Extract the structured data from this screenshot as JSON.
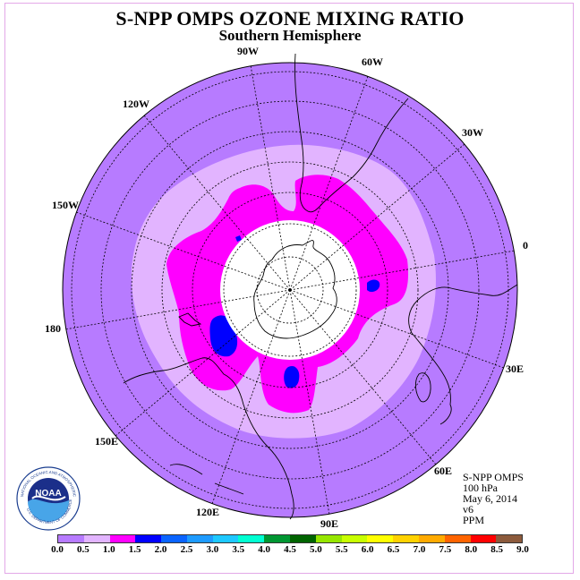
{
  "title": "S-NPP OMPS OZONE MIXING RATIO",
  "subtitle": "Southern Hemisphere",
  "longitude_labels": [
    "90W",
    "60W",
    "30W",
    "0",
    "30E",
    "60E",
    "90E",
    "120E",
    "150E",
    "180",
    "150W",
    "120W"
  ],
  "info": {
    "instrument": "S-NPP OMPS",
    "pressure_level": "100 hPa",
    "date": "May 6, 2014",
    "version": "v6",
    "units": "PPM"
  },
  "logo": {
    "text": "NOAA",
    "ring_text": "NATIONAL OCEANIC AND ATMOSPHERIC ADMINISTRATION",
    "ring_text_bottom": "U.S. DEPARTMENT OF COMMERCE"
  },
  "colorbar": {
    "ticks": [
      "0.0",
      "0.5",
      "1.0",
      "1.5",
      "2.0",
      "2.5",
      "3.0",
      "3.5",
      "4.0",
      "4.5",
      "5.0",
      "5.5",
      "6.0",
      "6.5",
      "7.0",
      "7.5",
      "8.0",
      "8.5",
      "9.0"
    ],
    "colors": [
      "#b77bff",
      "#e2b4ff",
      "#ff00ff",
      "#0000ff",
      "#0a64ff",
      "#1e9bff",
      "#1ec8ff",
      "#00ffd2",
      "#009632",
      "#006400",
      "#96e600",
      "#c8ff00",
      "#ffff00",
      "#ffd200",
      "#ffaa00",
      "#ff6400",
      "#ff0000",
      "#8c5a3c"
    ]
  },
  "map_colors": {
    "band_0_0_5": "#b77bff",
    "band_0_5_1_0": "#e2b4ff",
    "band_1_0_1_5": "#ff00ff",
    "band_1_5_2_0": "#0000ff",
    "no_data": "#ffffff"
  }
}
